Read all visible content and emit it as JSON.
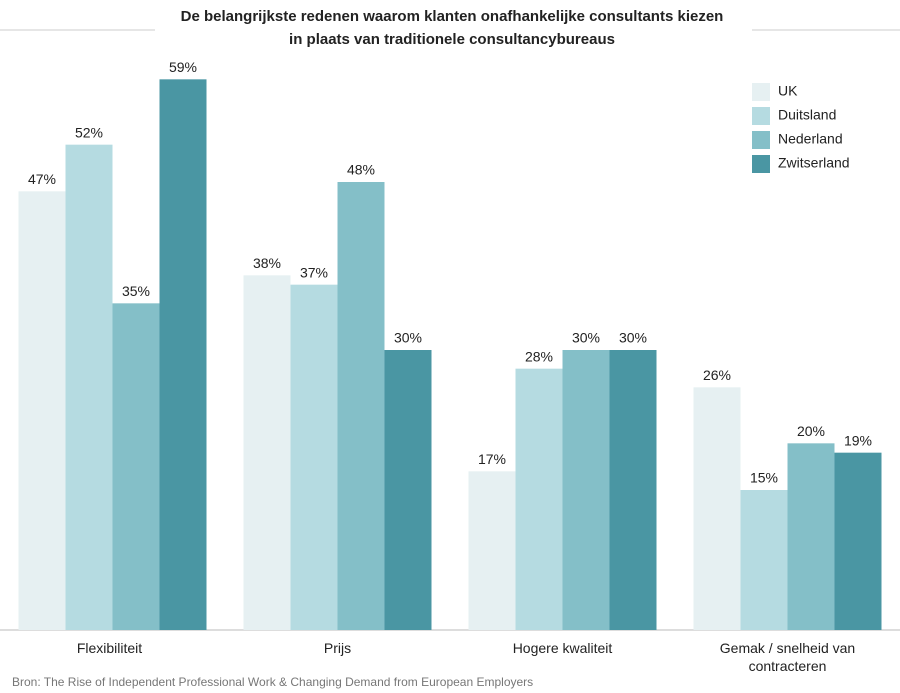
{
  "chart_data": {
    "type": "bar",
    "title": [
      "De belangrijkste redenen waarom klanten onafhankelijke consultants kiezen",
      "in plaats van traditionele consultancybureaus"
    ],
    "categories": [
      "Flexibiliteit",
      "Prijs",
      "Hogere kwaliteit",
      "Gemak / snelheid van contracteren"
    ],
    "series": [
      {
        "name": "UK",
        "color": "#e6f0f2",
        "values": [
          47,
          38,
          17,
          26
        ],
        "value_labels": [
          "47%",
          "38%",
          "17%",
          "26%"
        ]
      },
      {
        "name": "Duitsland",
        "color": "#b5dbe1",
        "values": [
          52,
          37,
          28,
          15
        ],
        "value_labels": [
          "52%",
          "37%",
          "28%",
          "15%"
        ]
      },
      {
        "name": "Nederland",
        "color": "#84bfc8",
        "values": [
          35,
          48,
          30,
          20
        ],
        "value_labels": [
          "35%",
          "48%",
          "30%",
          "20%"
        ]
      },
      {
        "name": "Zwitserland",
        "color": "#4a96a3",
        "values": [
          59,
          30,
          30,
          19
        ],
        "value_labels": [
          "59%",
          "30%",
          "30%",
          "19%"
        ]
      }
    ],
    "ylim": [
      0,
      60
    ],
    "legend": "top-right",
    "source": "Bron: The Rise of Independent Professional Work & Changing Demand from European Employers"
  }
}
